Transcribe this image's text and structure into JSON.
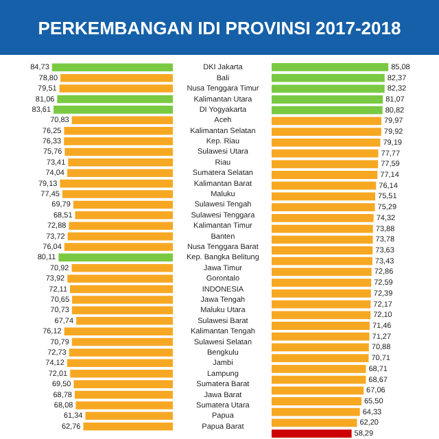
{
  "chart_data": [
    {
      "type": "bar",
      "orientation": "horizontal",
      "title": "PERKEMBANGAN IDI PROVINSI 2017-2018",
      "tick_labels": "y",
      "legend": false,
      "categories": [
        "DKI Jakarta",
        "Bali",
        "Nusa Tenggara Timur",
        "Kalimantan Utara",
        "DI Yogyakarta",
        "Aceh",
        "Kalimantan Selatan",
        "Kep. Riau",
        "Sulawesi Utara",
        "Riau",
        "Sumatera Selatan",
        "Kalimantan Barat",
        "Maluku",
        "Sulawesi Tengah",
        "Sulawesi Tenggara",
        "Kalimantan Timur",
        "Banten",
        "Nusa Tenggara Barat",
        "Kep. Bangka Belitung",
        "Jawa Timur",
        "Gorontalo",
        "INDONESIA",
        "Jawa Tengah",
        "Maluku Utara",
        "Sulawesi Barat",
        "Kalimantan Tengah",
        "Sulawesi Selatan",
        "Bengkulu",
        "Jambi",
        "Lampung",
        "Sumatera Barat",
        "Jawa Barat",
        "Sumatera Utara",
        "Papua",
        "Papua Barat"
      ],
      "values": [
        84.73,
        78.8,
        79.51,
        81.06,
        83.61,
        70.83,
        76.25,
        76.33,
        75.76,
        73.41,
        74.04,
        79.13,
        77.45,
        69.79,
        68.51,
        72.88,
        73.72,
        76.04,
        80.11,
        70.92,
        73.92,
        72.11,
        70.65,
        70.73,
        67.74,
        76.12,
        70.79,
        72.73,
        74.12,
        72.01,
        69.5,
        68.78,
        68.08,
        61.34,
        62.76
      ],
      "value_labels": [
        "84,73",
        "78,80",
        "79,51",
        "81,06",
        "83,61",
        "70,83",
        "76,25",
        "76,33",
        "75,76",
        "73,41",
        "74,04",
        "79,13",
        "77,45",
        "69,79",
        "68,51",
        "72,88",
        "73,72",
        "76,04",
        "80,11",
        "70,92",
        "73,92",
        "72,11",
        "70,65",
        "70,73",
        "67,74",
        "76,12",
        "70,79",
        "72,73",
        "74,12",
        "72,01",
        "69,50",
        "68,78",
        "68,08",
        "61,34",
        "62,76"
      ],
      "colors": [
        "#7ac943",
        "#f7a823",
        "#f7a823",
        "#7ac943",
        "#7ac943",
        "#f7a823",
        "#f7a823",
        "#f7a823",
        "#f7a823",
        "#f7a823",
        "#f7a823",
        "#f7a823",
        "#f7a823",
        "#f7a823",
        "#f7a823",
        "#f7a823",
        "#f7a823",
        "#f7a823",
        "#7ac943",
        "#f7a823",
        "#f7a823",
        "#f7a823",
        "#f7a823",
        "#f7a823",
        "#f7a823",
        "#f7a823",
        "#f7a823",
        "#f7a823",
        "#f7a823",
        "#f7a823",
        "#f7a823",
        "#f7a823",
        "#f7a823",
        "#f7a823",
        "#f7a823"
      ]
    },
    {
      "type": "bar",
      "orientation": "horizontal",
      "tick_labels": false,
      "legend": false,
      "categories": [
        null,
        null,
        null,
        null,
        null,
        null,
        null,
        null,
        null,
        null,
        null,
        null,
        null,
        null,
        null,
        null,
        null,
        null,
        null,
        null,
        null,
        null,
        null,
        null,
        null,
        null,
        null,
        null,
        null,
        null,
        null,
        null,
        null,
        null,
        null
      ],
      "values": [
        85.08,
        82.37,
        82.32,
        81.07,
        80.82,
        79.97,
        79.92,
        79.19,
        77.77,
        77.59,
        77.14,
        76.14,
        75.51,
        75.29,
        74.32,
        73.88,
        73.78,
        73.63,
        73.43,
        72.86,
        72.59,
        72.39,
        72.17,
        72.1,
        71.46,
        71.27,
        70.88,
        70.71,
        68.71,
        68.67,
        67.06,
        65.5,
        64.33,
        62.2,
        58.29
      ],
      "value_labels": [
        "85,08",
        "82,37",
        "82,32",
        "81,07",
        "80,82",
        "79,97",
        "79,92",
        "79,19",
        "77,77",
        "77,59",
        "77,14",
        "76,14",
        "75,51",
        "75,29",
        "74,32",
        "73,88",
        "73,78",
        "73,63",
        "73,43",
        "72,86",
        "72,59",
        "72,39",
        "72,17",
        "72,10",
        "71,46",
        "71,27",
        "70,88",
        "70,71",
        "68,71",
        "68,67",
        "67,06",
        "65,50",
        "64,33",
        "62,20",
        "58,29"
      ],
      "colors": [
        "#7ac943",
        "#7ac943",
        "#7ac943",
        "#7ac943",
        "#7ac943",
        "#f7a823",
        "#f7a823",
        "#f7a823",
        "#f7a823",
        "#f7a823",
        "#f7a823",
        "#f7a823",
        "#f7a823",
        "#f7a823",
        "#f7a823",
        "#f7a823",
        "#f7a823",
        "#f7a823",
        "#f7a823",
        "#f7a823",
        "#f7a823",
        "#f7a823",
        "#f7a823",
        "#f7a823",
        "#f7a823",
        "#f7a823",
        "#f7a823",
        "#f7a823",
        "#f7a823",
        "#f7a823",
        "#f7a823",
        "#f7a823",
        "#f7a823",
        "#f7a823",
        "#cc0000"
      ]
    }
  ]
}
